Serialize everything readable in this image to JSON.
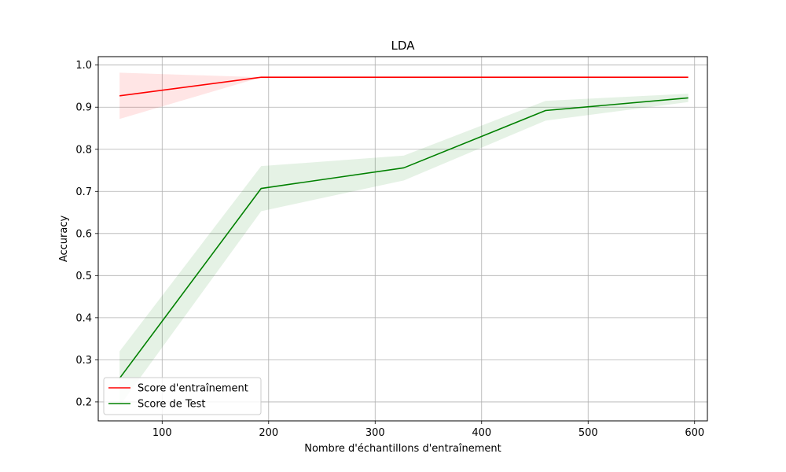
{
  "chart_data": {
    "type": "line",
    "title": "LDA",
    "xlabel": "Nombre d'échantillons d'entraînement",
    "ylabel": "Accuracy",
    "xlim": [
      40,
      612
    ],
    "ylim": [
      0.155,
      1.02
    ],
    "xticks": [
      100,
      200,
      300,
      400,
      500,
      600
    ],
    "yticks": [
      0.2,
      0.3,
      0.4,
      0.5,
      0.6,
      0.7,
      0.8,
      0.9,
      1.0
    ],
    "xtick_labels": [
      "100",
      "200",
      "300",
      "400",
      "500",
      "600"
    ],
    "ytick_labels": [
      "0.2",
      "0.3",
      "0.4",
      "0.5",
      "0.6",
      "0.7",
      "0.8",
      "0.9",
      "1.0"
    ],
    "grid": true,
    "legend_position": "lower-left",
    "x": [
      60,
      193,
      327,
      460,
      594
    ],
    "series": [
      {
        "name": "Score d'entraînement",
        "color": "#ff0000",
        "values": [
          0.927,
          0.971,
          0.971,
          0.971,
          0.971
        ],
        "lower": [
          0.872,
          0.971,
          0.971,
          0.971,
          0.971
        ],
        "upper": [
          0.982,
          0.971,
          0.971,
          0.971,
          0.971
        ]
      },
      {
        "name": "Score de Test",
        "color": "#008000",
        "values": [
          0.256,
          0.707,
          0.756,
          0.892,
          0.922
        ],
        "lower": [
          0.19,
          0.653,
          0.726,
          0.868,
          0.912
        ],
        "upper": [
          0.32,
          0.76,
          0.785,
          0.915,
          0.932
        ]
      }
    ]
  }
}
